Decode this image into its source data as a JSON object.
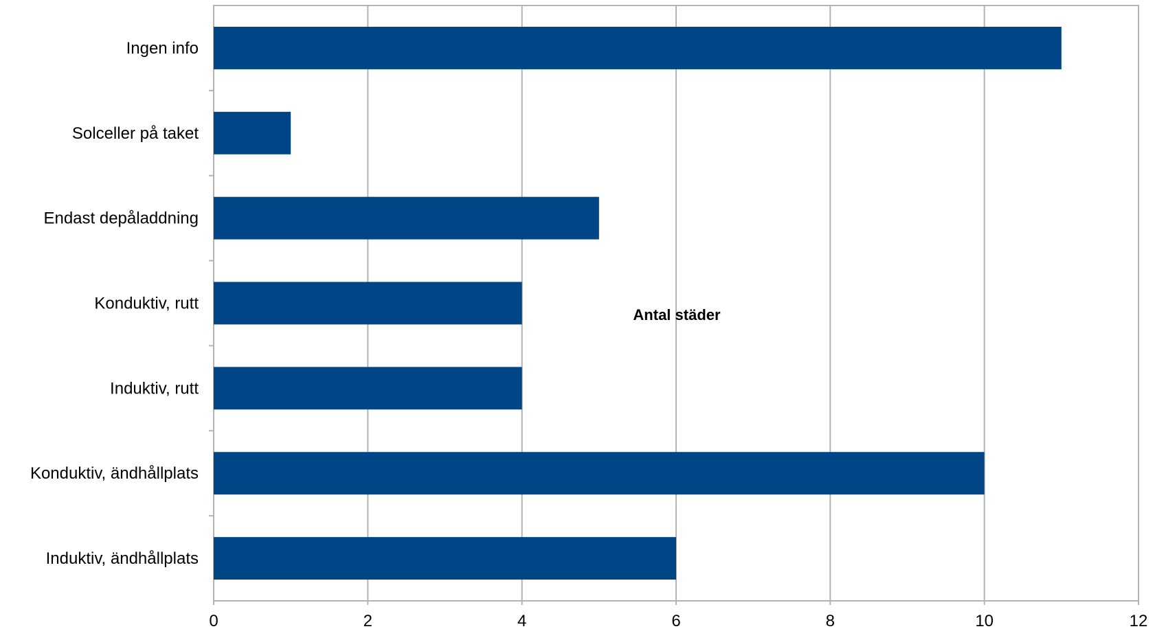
{
  "chart_data": {
    "type": "bar",
    "orientation": "horizontal",
    "categories": [
      "Ingen info",
      "Solceller på taket",
      "Endast depåladdning",
      "Konduktiv, rutt",
      "Induktiv, rutt",
      "Konduktiv, ändhållplats",
      "Induktiv, ändhållplats"
    ],
    "values": [
      11,
      1,
      5,
      4,
      4,
      10,
      6
    ],
    "annotation": "Antal städer",
    "xlim": [
      0,
      12
    ],
    "xticks": [
      "0",
      "2",
      "4",
      "6",
      "8",
      "10",
      "12"
    ],
    "grid": "vertical",
    "legend": "none",
    "bar_color": "#004687",
    "grid_color": "#b3b3b3"
  }
}
